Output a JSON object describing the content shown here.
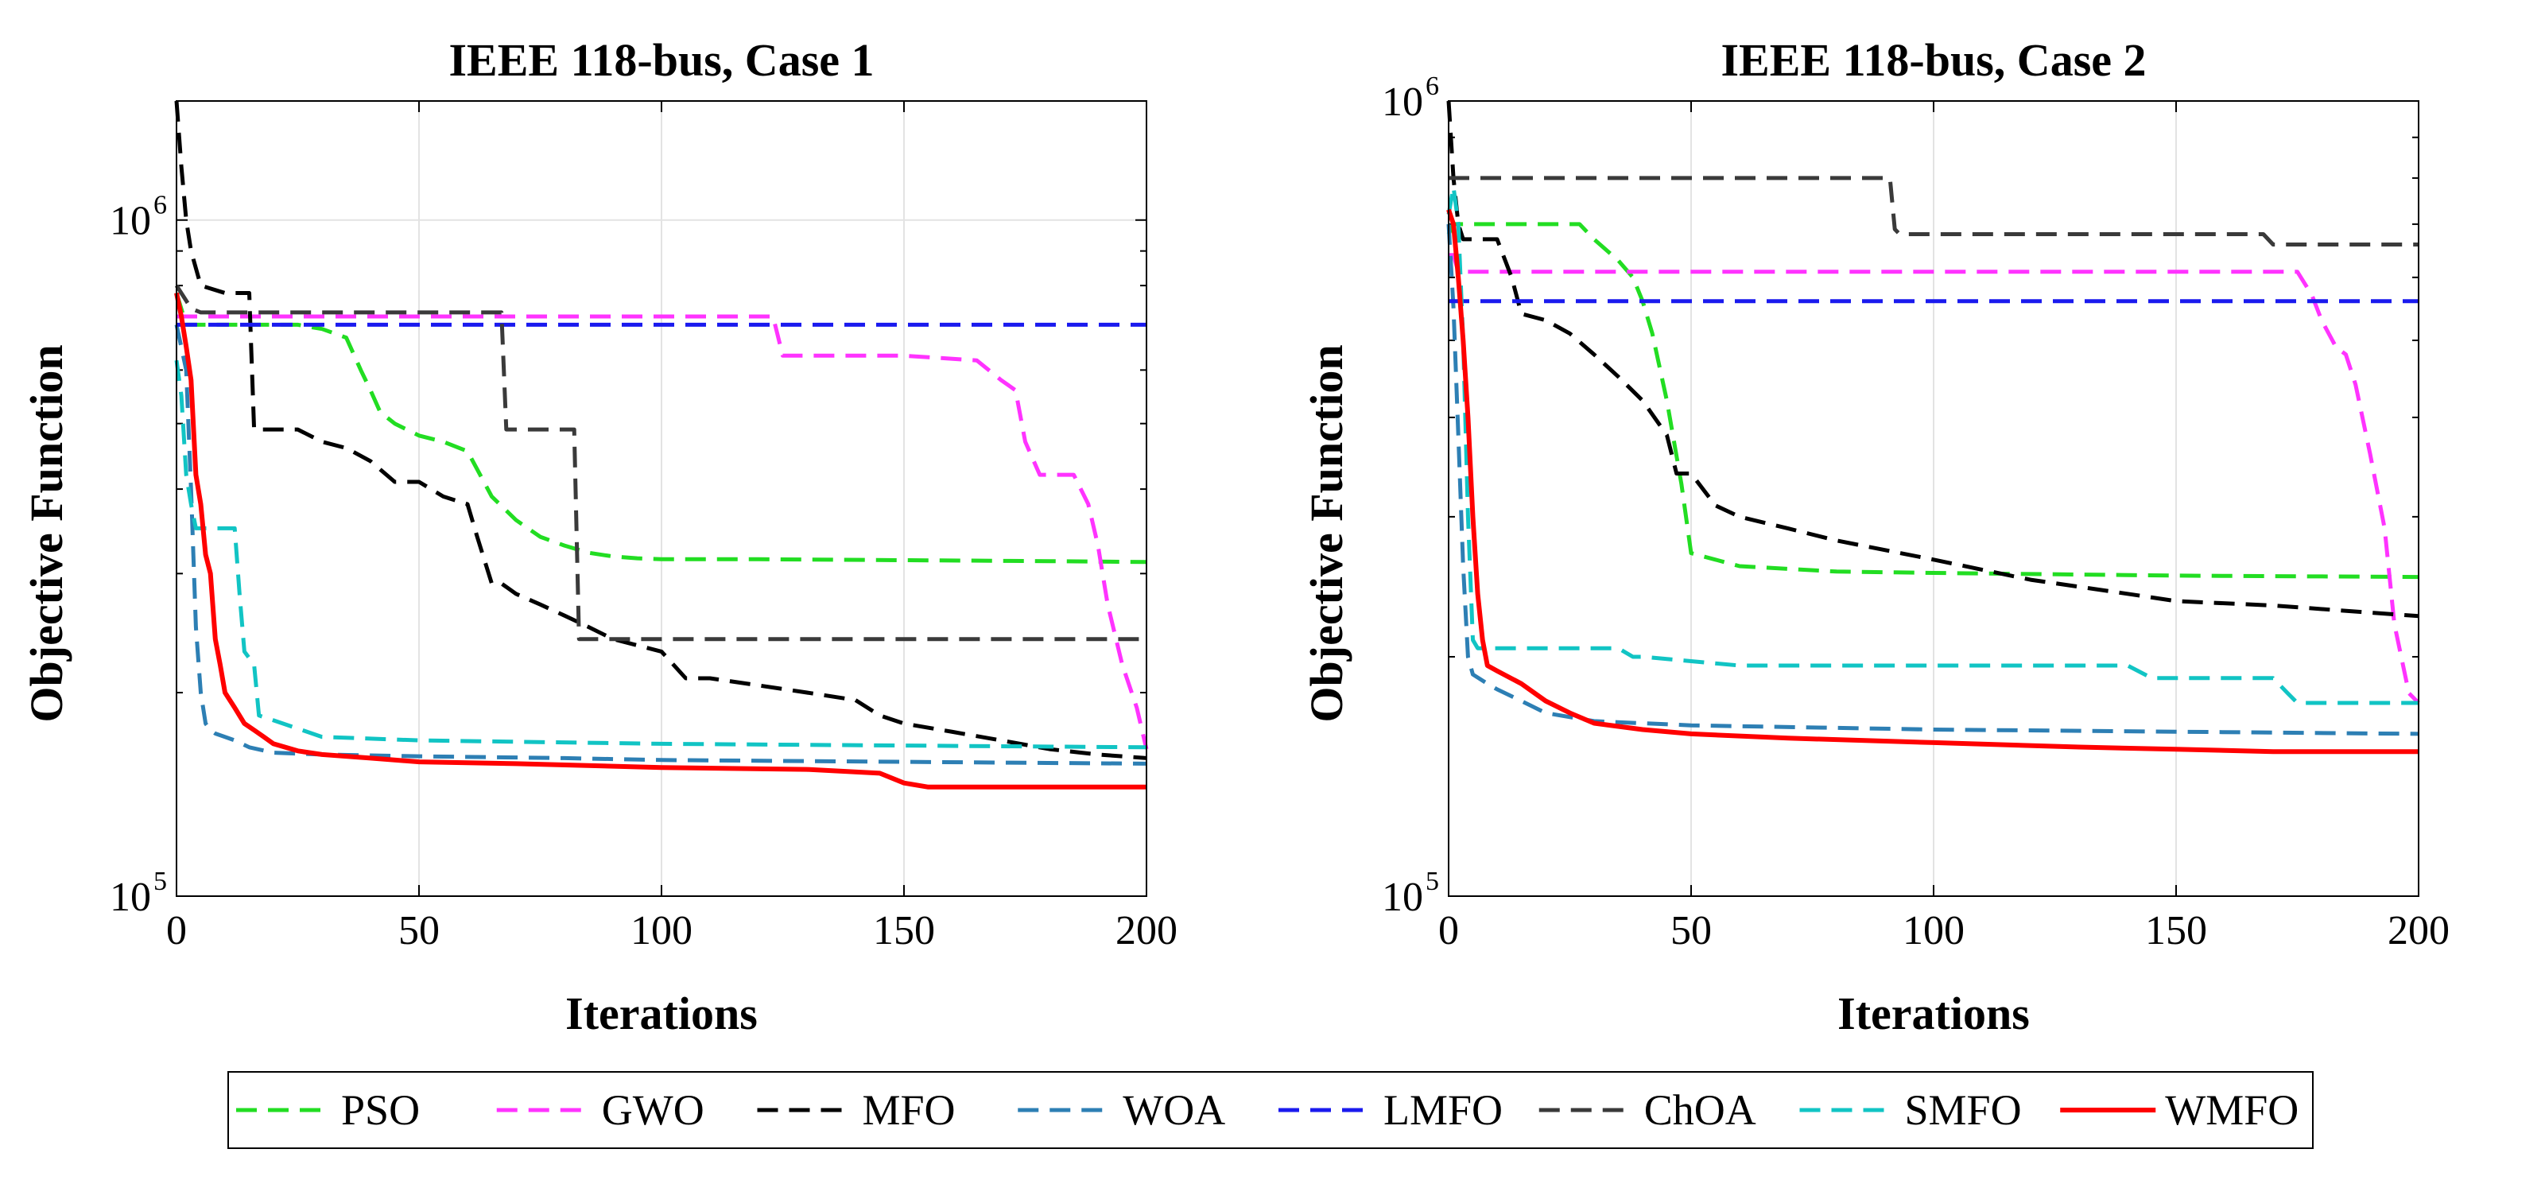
{
  "chart_data": [
    {
      "type": "line",
      "title": "IEEE 118-bus, Case 1",
      "xlabel": "Iterations",
      "ylabel": "Objective Function",
      "xlim": [
        0,
        200
      ],
      "ylim": [
        100000,
        1500000
      ],
      "yscale": "log",
      "grid": true,
      "xticks": [
        "0",
        "50",
        "100",
        "150",
        "200"
      ],
      "yticks": [
        {
          "base": "10",
          "exp": "5"
        },
        {
          "base": "10",
          "exp": "6"
        }
      ],
      "series": [
        {
          "name": "PSO",
          "x": [
            0,
            2,
            5,
            10,
            15,
            20,
            25,
            30,
            35,
            38,
            40,
            42,
            45,
            50,
            55,
            60,
            65,
            70,
            75,
            80,
            85,
            90,
            95,
            100,
            120,
            150,
            180,
            200
          ],
          "y": [
            780000,
            700000,
            700000,
            700000,
            700000,
            700000,
            700000,
            690000,
            670000,
            600000,
            560000,
            520000,
            500000,
            480000,
            470000,
            455000,
            390000,
            360000,
            340000,
            330000,
            322000,
            318000,
            316000,
            315000,
            315000,
            314000,
            313000,
            312000
          ]
        },
        {
          "name": "GWO",
          "x": [
            0,
            2,
            5,
            10,
            20,
            40,
            60,
            80,
            100,
            120,
            123,
            125,
            130,
            150,
            165,
            170,
            173,
            175,
            178,
            180,
            185,
            188,
            190,
            192,
            195,
            198,
            200
          ],
          "y": [
            720000,
            720000,
            720000,
            720000,
            720000,
            720000,
            720000,
            720000,
            720000,
            720000,
            720000,
            630000,
            630000,
            630000,
            620000,
            580000,
            560000,
            470000,
            420000,
            420000,
            420000,
            380000,
            330000,
            270000,
            220000,
            190000,
            165000
          ]
        },
        {
          "name": "MFO",
          "x": [
            0,
            1,
            2,
            3,
            5,
            10,
            15,
            16,
            20,
            25,
            30,
            35,
            40,
            45,
            50,
            55,
            60,
            62,
            65,
            67,
            70,
            75,
            80,
            85,
            90,
            100,
            105,
            110,
            120,
            130,
            140,
            145,
            150,
            160,
            170,
            180,
            190,
            200
          ],
          "y": [
            1500000,
            1200000,
            1000000,
            900000,
            800000,
            780000,
            780000,
            490000,
            490000,
            490000,
            470000,
            460000,
            440000,
            410000,
            410000,
            390000,
            380000,
            340000,
            290000,
            290000,
            280000,
            270000,
            260000,
            250000,
            240000,
            230000,
            210000,
            210000,
            205000,
            200000,
            195000,
            185000,
            180000,
            175000,
            170000,
            165000,
            162000,
            160000
          ]
        },
        {
          "name": "WOA",
          "x": [
            0,
            2,
            3,
            4,
            5,
            6,
            7,
            8,
            10,
            12,
            15,
            20,
            30,
            50,
            80,
            100,
            150,
            200
          ],
          "y": [
            700000,
            600000,
            400000,
            250000,
            200000,
            180000,
            176000,
            174000,
            172000,
            170000,
            166000,
            163000,
            162000,
            161000,
            160000,
            159000,
            158000,
            157000
          ]
        },
        {
          "name": "LMFO",
          "x": [
            0,
            1,
            2,
            3,
            5,
            200
          ],
          "y": [
            700000,
            700000,
            700000,
            700000,
            700000,
            700000
          ]
        },
        {
          "name": "ChOA",
          "x": [
            0,
            2,
            3,
            5,
            10,
            20,
            40,
            60,
            67,
            68,
            69,
            75,
            80,
            82,
            83,
            85,
            100,
            150,
            200
          ],
          "y": [
            800000,
            760000,
            740000,
            730000,
            730000,
            730000,
            730000,
            730000,
            730000,
            490000,
            490000,
            490000,
            490000,
            490000,
            240000,
            240000,
            240000,
            240000,
            240000
          ]
        },
        {
          "name": "SMFO",
          "x": [
            0,
            1,
            2,
            3,
            4,
            5,
            6,
            8,
            12,
            13,
            14,
            16,
            17,
            20,
            30,
            50,
            100,
            150,
            200
          ],
          "y": [
            620000,
            550000,
            420000,
            380000,
            350000,
            350000,
            350000,
            350000,
            350000,
            280000,
            230000,
            220000,
            185000,
            182000,
            172000,
            170000,
            168000,
            167000,
            166000
          ]
        },
        {
          "name": "WMFO",
          "x": [
            0,
            1,
            2,
            3,
            4,
            5,
            6,
            7,
            8,
            9,
            10,
            12,
            14,
            16,
            18,
            20,
            25,
            30,
            40,
            50,
            70,
            100,
            130,
            145,
            150,
            155,
            160,
            200
          ],
          "y": [
            780000,
            720000,
            650000,
            580000,
            420000,
            380000,
            320000,
            300000,
            240000,
            220000,
            200000,
            190000,
            180000,
            176000,
            172000,
            168000,
            164000,
            162000,
            160000,
            158000,
            157000,
            155000,
            154000,
            152000,
            147000,
            145000,
            145000,
            145000
          ]
        }
      ]
    },
    {
      "type": "line",
      "title": "IEEE 118-bus, Case 2",
      "xlabel": "Iterations",
      "ylabel": "Objective Function",
      "xlim": [
        0,
        200
      ],
      "ylim": [
        100000,
        1000000
      ],
      "yscale": "log",
      "grid": true,
      "xticks": [
        "0",
        "50",
        "100",
        "150",
        "200"
      ],
      "yticks": [
        {
          "base": "10",
          "exp": "5"
        },
        {
          "base": "10",
          "exp": "6"
        }
      ],
      "series": [
        {
          "name": "PSO",
          "x": [
            0,
            1,
            2,
            3,
            5,
            10,
            20,
            25,
            27,
            30,
            35,
            38,
            40,
            42,
            45,
            48,
            50,
            55,
            60,
            70,
            80,
            100,
            150,
            200
          ],
          "y": [
            680000,
            700000,
            700000,
            700000,
            700000,
            700000,
            700000,
            700000,
            700000,
            670000,
            630000,
            600000,
            560000,
            510000,
            420000,
            330000,
            270000,
            265000,
            260000,
            258000,
            256000,
            255000,
            253000,
            252000
          ]
        },
        {
          "name": "GWO",
          "x": [
            0,
            1,
            2,
            5,
            20,
            50,
            100,
            150,
            175,
            178,
            180,
            183,
            185,
            187,
            190,
            193,
            195,
            198,
            200
          ],
          "y": [
            640000,
            640000,
            610000,
            610000,
            610000,
            610000,
            610000,
            610000,
            610000,
            570000,
            530000,
            490000,
            480000,
            440000,
            360000,
            290000,
            220000,
            180000,
            175000
          ]
        },
        {
          "name": "MFO",
          "x": [
            0,
            1,
            2,
            3,
            5,
            10,
            13,
            15,
            20,
            25,
            30,
            35,
            40,
            45,
            47,
            50,
            55,
            60,
            70,
            80,
            100,
            120,
            140,
            150,
            170,
            200
          ],
          "y": [
            1000000,
            800000,
            700000,
            670000,
            670000,
            670000,
            600000,
            540000,
            530000,
            510000,
            480000,
            450000,
            420000,
            380000,
            340000,
            340000,
            310000,
            300000,
            290000,
            280000,
            265000,
            250000,
            240000,
            235000,
            232000,
            225000
          ]
        },
        {
          "name": "WOA",
          "x": [
            0,
            1,
            2,
            3,
            4,
            5,
            8,
            10,
            15,
            20,
            30,
            50,
            100,
            150,
            200
          ],
          "y": [
            700000,
            550000,
            380000,
            260000,
            200000,
            190000,
            185000,
            182000,
            176000,
            170000,
            166000,
            164000,
            162000,
            161000,
            160000
          ]
        },
        {
          "name": "LMFO",
          "x": [
            0,
            1,
            2,
            5,
            200
          ],
          "y": [
            560000,
            560000,
            560000,
            560000,
            560000
          ]
        },
        {
          "name": "ChOA",
          "x": [
            0,
            2,
            3,
            5,
            20,
            50,
            91,
            92,
            93,
            100,
            150,
            168,
            170,
            200
          ],
          "y": [
            800000,
            800000,
            800000,
            800000,
            800000,
            800000,
            800000,
            690000,
            680000,
            680000,
            680000,
            680000,
            660000,
            660000
          ]
        },
        {
          "name": "SMFO",
          "x": [
            0,
            1,
            2,
            3,
            4,
            5,
            6,
            8,
            10,
            20,
            35,
            38,
            40,
            60,
            80,
            100,
            140,
            145,
            150,
            170,
            173,
            175,
            200
          ],
          "y": [
            720000,
            780000,
            700000,
            500000,
            300000,
            210000,
            205000,
            205000,
            205000,
            205000,
            205000,
            200000,
            200000,
            195000,
            195000,
            195000,
            195000,
            188000,
            188000,
            188000,
            180000,
            175000,
            175000
          ]
        },
        {
          "name": "WMFO",
          "x": [
            0,
            1,
            2,
            3,
            4,
            5,
            6,
            7,
            8,
            10,
            15,
            20,
            25,
            30,
            40,
            50,
            70,
            100,
            130,
            150,
            170,
            200
          ],
          "y": [
            730000,
            700000,
            600000,
            500000,
            400000,
            300000,
            240000,
            210000,
            195000,
            192000,
            185000,
            176000,
            170000,
            165000,
            162000,
            160000,
            158000,
            156000,
            154000,
            153000,
            152000,
            152000
          ]
        }
      ]
    }
  ],
  "legend": {
    "items": [
      {
        "name": "PSO",
        "color": "#22dd22",
        "dash": "dashed"
      },
      {
        "name": "GWO",
        "color": "#ff33ff",
        "dash": "dashed"
      },
      {
        "name": "MFO",
        "color": "#000000",
        "dash": "dashed"
      },
      {
        "name": "WOA",
        "color": "#2d7fb4",
        "dash": "dashed"
      },
      {
        "name": "LMFO",
        "color": "#1a1aee",
        "dash": "dashed"
      },
      {
        "name": "ChOA",
        "color": "#3a3a3a",
        "dash": "dashed"
      },
      {
        "name": "SMFO",
        "color": "#11c4c4",
        "dash": "dashed"
      },
      {
        "name": "WMFO",
        "color": "#ff0000",
        "dash": "solid"
      }
    ]
  }
}
